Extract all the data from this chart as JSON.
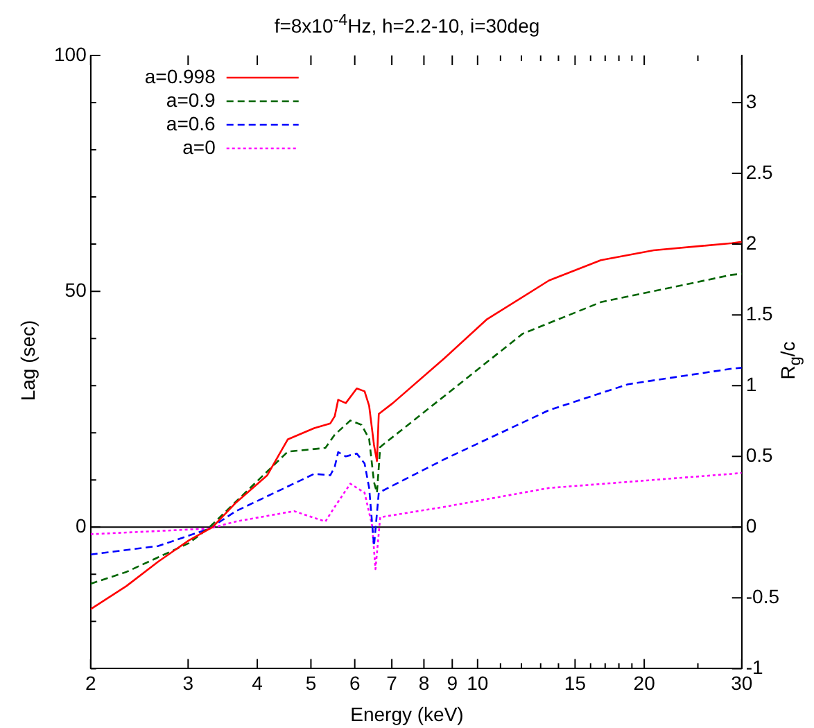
{
  "chart_data": {
    "type": "line",
    "title": "f=8x10$^{-4}$Hz, h=2.2-10, i=30deg",
    "xlabel": "Energy (keV)",
    "ylabel": "Lag (sec)",
    "y2label": "R$_{g}$/c",
    "log": "x",
    "grid": false,
    "legend": "top left",
    "marker": "none",
    "xlim": [
      2,
      30
    ],
    "xticks": [
      2,
      3,
      4,
      5,
      6,
      7,
      8,
      9,
      10,
      {
        "value": 11,
        "label": null
      },
      {
        "value": 12,
        "label": null
      },
      {
        "value": 13,
        "label": null
      },
      {
        "value": 14,
        "label": null
      },
      15,
      {
        "value": 16,
        "label": null
      },
      {
        "value": 17,
        "label": null
      },
      {
        "value": 18,
        "label": null
      },
      {
        "value": 19,
        "label": null
      },
      20,
      {
        "value": 25,
        "label": null
      },
      30
    ],
    "ylim": [
      -30,
      100
    ],
    "yticks": [
      {
        "value": -30,
        "label": null
      },
      {
        "value": -20,
        "label": null
      },
      {
        "value": -10,
        "label": null
      },
      0,
      {
        "value": 10,
        "label": null
      },
      {
        "value": 20,
        "label": null
      },
      {
        "value": 30,
        "label": null
      },
      {
        "value": 40,
        "label": null
      },
      50,
      {
        "value": 60,
        "label": null
      },
      {
        "value": 70,
        "label": null
      },
      {
        "value": 80,
        "label": null
      },
      {
        "value": 90,
        "label": null
      },
      100
    ],
    "y2lim": [
      -1,
      3.333
    ],
    "y2ticks": [
      -1,
      -0.5,
      0,
      0.5,
      1,
      1.5,
      2,
      2.5,
      3
    ],
    "ref_lines": [
      {
        "axis": "y",
        "value": 0,
        "color": "#000000"
      }
    ],
    "series": [
      {
        "name": "a=0.998",
        "color": "#ff0000",
        "line_style": "solid",
        "x": [
          2,
          2.32,
          2.65,
          3.01,
          3.32,
          3.66,
          4.17,
          4.54,
          5.07,
          5.42,
          5.52,
          5.6,
          5.78,
          6.05,
          6.25,
          6.37,
          6.5,
          6.58,
          6.63,
          7.03,
          8.71,
          10.38,
          13.46,
          16.7,
          20.8,
          28.8,
          30
        ],
        "values": [
          -17.4,
          -12.5,
          -7.3,
          -2.8,
          0,
          5.2,
          11,
          18.6,
          21,
          22,
          23.5,
          27,
          26.3,
          29.4,
          28.8,
          25.7,
          17.4,
          14,
          24,
          26.3,
          35.8,
          44,
          52.3,
          56.6,
          58.7,
          60.2,
          60.5
        ]
      },
      {
        "name": "a=0.9",
        "color": "#006400",
        "line_style": "dashed",
        "x": [
          2,
          2.32,
          3.01,
          3.28,
          4.54,
          5.31,
          5.52,
          5.89,
          6.17,
          6.37,
          6.5,
          6.58,
          6.67,
          8.71,
          12.06,
          16.7,
          28.8,
          30
        ],
        "values": [
          -12,
          -9.5,
          -3.4,
          0,
          16,
          16.8,
          19.6,
          22.6,
          21.7,
          18.7,
          9.5,
          7.3,
          17,
          27.8,
          41,
          47.7,
          53.5,
          53.7
        ]
      },
      {
        "name": "a=0.6",
        "color": "#0000ff",
        "line_style": "dashed",
        "x": [
          2,
          2.65,
          3.28,
          3.66,
          5.07,
          5.42,
          5.52,
          5.6,
          5.78,
          6.05,
          6.25,
          6.37,
          6.5,
          6.63,
          8.71,
          13.46,
          18.7,
          28.8,
          30
        ],
        "values": [
          -5.8,
          -4,
          -0.3,
          3.4,
          11.3,
          11,
          12.8,
          15.9,
          15,
          15.6,
          13.5,
          8.3,
          -4,
          7.3,
          14.4,
          24.8,
          30.3,
          33.6,
          33.8
        ]
      },
      {
        "name": "a=0",
        "color": "#ff00ff",
        "line_style": "dotted",
        "x": [
          2,
          3.28,
          3.66,
          4.66,
          5.31,
          5.52,
          5.89,
          6.25,
          6.45,
          6.54,
          6.67,
          8.71,
          13.46,
          28.8,
          30
        ],
        "values": [
          -1.5,
          -0.3,
          1.2,
          3.4,
          1.2,
          4.3,
          9.2,
          7.3,
          0.3,
          -8.9,
          2.1,
          4.3,
          8.3,
          11.3,
          11.5
        ]
      }
    ]
  }
}
